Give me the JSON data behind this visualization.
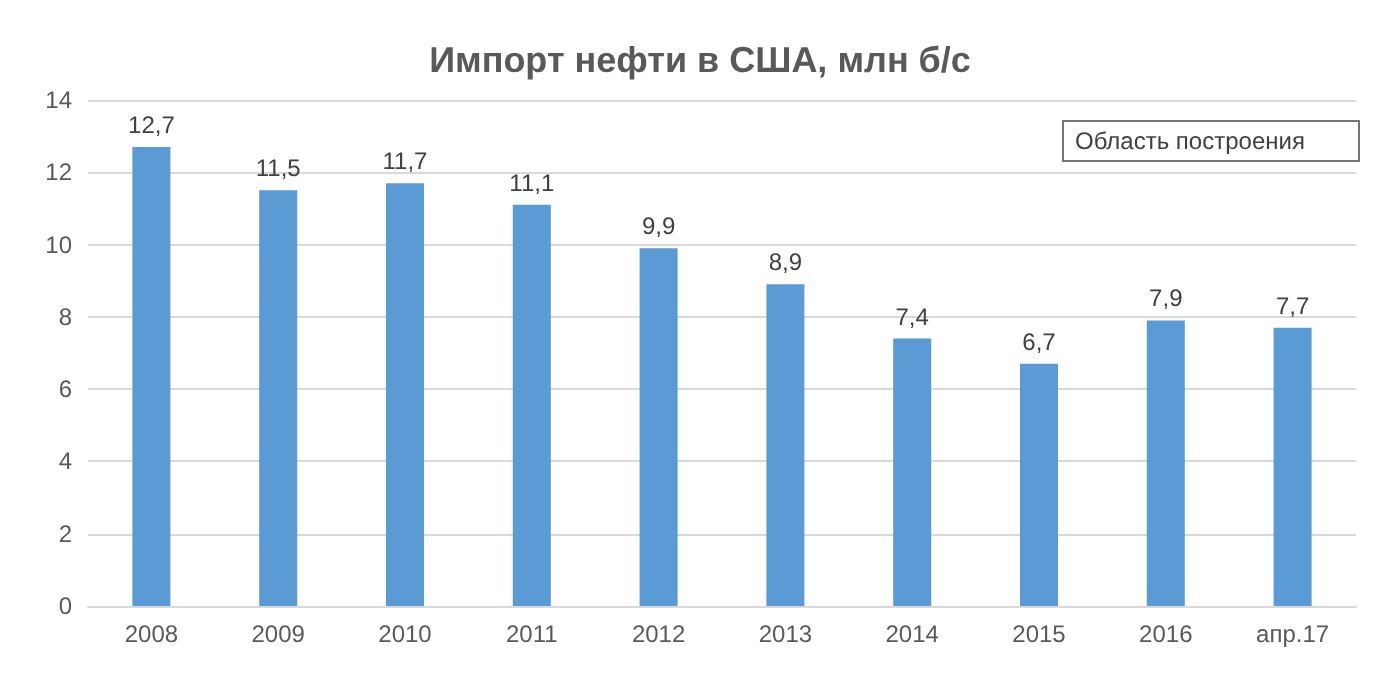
{
  "chart_data": {
    "type": "bar",
    "title": "Импорт нефти в США, млн б/с",
    "categories": [
      "2008",
      "2009",
      "2010",
      "2011",
      "2012",
      "2013",
      "2014",
      "2015",
      "2016",
      "апр.17"
    ],
    "values": [
      12.7,
      11.5,
      11.7,
      11.1,
      9.9,
      8.9,
      7.4,
      6.7,
      7.9,
      7.7
    ],
    "color": "#5b9bd5",
    "ylim": [
      0,
      14
    ],
    "yticks": [
      0,
      2,
      4,
      6,
      8,
      10,
      12,
      14
    ],
    "value_labels": [
      "12,7",
      "11,5",
      "11,7",
      "11,1",
      "9,9",
      "8,9",
      "7,4",
      "6,7",
      "7,9",
      "7,7"
    ],
    "grid": "y",
    "annotations": [
      "Область построения"
    ]
  }
}
